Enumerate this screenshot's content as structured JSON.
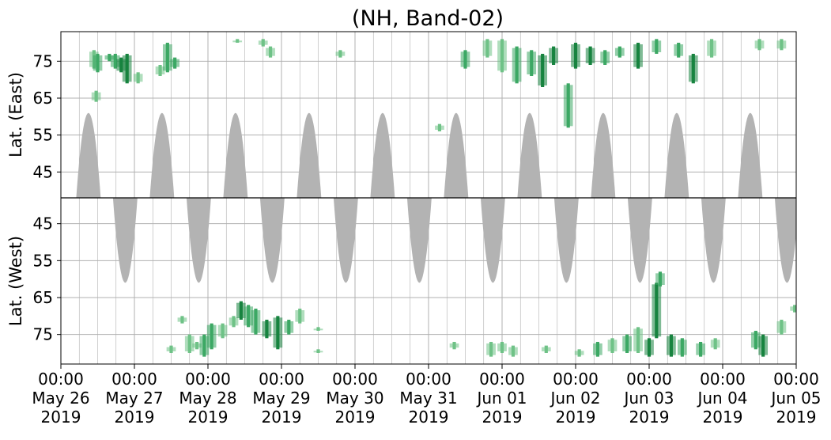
{
  "chart_data": {
    "type": "heatmap",
    "title": "(NH, Band-02)",
    "x_ticks": [
      {
        "time": "00:00",
        "date": "May 26",
        "year": "2019"
      },
      {
        "time": "00:00",
        "date": "May 27",
        "year": "2019"
      },
      {
        "time": "00:00",
        "date": "May 28",
        "year": "2019"
      },
      {
        "time": "00:00",
        "date": "May 29",
        "year": "2019"
      },
      {
        "time": "00:00",
        "date": "May 30",
        "year": "2019"
      },
      {
        "time": "00:00",
        "date": "May 31",
        "year": "2019"
      },
      {
        "time": "00:00",
        "date": "Jun 01",
        "year": "2019"
      },
      {
        "time": "00:00",
        "date": "Jun 02",
        "year": "2019"
      },
      {
        "time": "00:00",
        "date": "Jun 03",
        "year": "2019"
      },
      {
        "time": "00:00",
        "date": "Jun 04",
        "year": "2019"
      },
      {
        "time": "00:00",
        "date": "Jun 05",
        "year": "2019"
      }
    ],
    "x_range": [
      "2019-05-26 00:00",
      "2019-06-05 00:00"
    ],
    "grid": true,
    "panels": [
      {
        "ylabel": "Lat. (East)",
        "yticks": [
          "45",
          "55",
          "65",
          "75"
        ],
        "y_range": [
          38,
          83
        ],
        "y_inverted": false,
        "night_shading_color": "#b3b3b3",
        "night_lobes": [
          {
            "center": "2019-05-26 09:00",
            "half_width_days": 0.17,
            "min_lat": 61
          },
          {
            "center": "2019-05-27 09:00",
            "half_width_days": 0.17,
            "min_lat": 61
          },
          {
            "center": "2019-05-28 09:00",
            "half_width_days": 0.17,
            "min_lat": 61
          },
          {
            "center": "2019-05-29 09:00",
            "half_width_days": 0.17,
            "min_lat": 61
          },
          {
            "center": "2019-05-30 09:00",
            "half_width_days": 0.17,
            "min_lat": 61
          },
          {
            "center": "2019-05-31 09:00",
            "half_width_days": 0.17,
            "min_lat": 61
          },
          {
            "center": "2019-06-01 09:00",
            "half_width_days": 0.17,
            "min_lat": 61
          },
          {
            "center": "2019-06-02 09:00",
            "half_width_days": 0.17,
            "min_lat": 61
          },
          {
            "center": "2019-06-03 09:00",
            "half_width_days": 0.17,
            "min_lat": 61
          },
          {
            "center": "2019-06-04 09:00",
            "half_width_days": 0.17,
            "min_lat": 61
          }
        ],
        "observations": [
          {
            "day": 0.45,
            "lat_from": 73,
            "lat_to": 78,
            "intensity": "low"
          },
          {
            "day": 0.48,
            "lat_from": 64,
            "lat_to": 67,
            "intensity": "low"
          },
          {
            "day": 0.5,
            "lat_from": 72,
            "lat_to": 77,
            "intensity": "mid"
          },
          {
            "day": 0.66,
            "lat_from": 75,
            "lat_to": 77,
            "intensity": "mid"
          },
          {
            "day": 0.74,
            "lat_from": 73,
            "lat_to": 77,
            "intensity": "mid"
          },
          {
            "day": 0.82,
            "lat_from": 72,
            "lat_to": 76,
            "intensity": "high"
          },
          {
            "day": 0.9,
            "lat_from": 69,
            "lat_to": 77,
            "intensity": "high"
          },
          {
            "day": 1.05,
            "lat_from": 69,
            "lat_to": 72,
            "intensity": "low"
          },
          {
            "day": 1.35,
            "lat_from": 71,
            "lat_to": 74,
            "intensity": "low"
          },
          {
            "day": 1.45,
            "lat_from": 72,
            "lat_to": 80,
            "intensity": "mid"
          },
          {
            "day": 1.55,
            "lat_from": 73,
            "lat_to": 76,
            "intensity": "mid"
          },
          {
            "day": 2.4,
            "lat_from": 80,
            "lat_to": 81,
            "intensity": "low"
          },
          {
            "day": 2.75,
            "lat_from": 79,
            "lat_to": 81,
            "intensity": "low"
          },
          {
            "day": 2.85,
            "lat_from": 76,
            "lat_to": 79,
            "intensity": "low"
          },
          {
            "day": 3.8,
            "lat_from": 76,
            "lat_to": 78,
            "intensity": "low"
          },
          {
            "day": 5.15,
            "lat_from": 56,
            "lat_to": 58,
            "intensity": "low"
          },
          {
            "day": 5.5,
            "lat_from": 73,
            "lat_to": 78,
            "intensity": "mid"
          },
          {
            "day": 5.8,
            "lat_from": 76,
            "lat_to": 81,
            "intensity": "low"
          },
          {
            "day": 6.0,
            "lat_from": 72,
            "lat_to": 81,
            "intensity": "low"
          },
          {
            "day": 6.2,
            "lat_from": 69,
            "lat_to": 79,
            "intensity": "mid"
          },
          {
            "day": 6.4,
            "lat_from": 71,
            "lat_to": 78,
            "intensity": "mid"
          },
          {
            "day": 6.55,
            "lat_from": 68,
            "lat_to": 77,
            "intensity": "high"
          },
          {
            "day": 6.7,
            "lat_from": 74,
            "lat_to": 79,
            "intensity": "high"
          },
          {
            "day": 6.9,
            "lat_from": 57,
            "lat_to": 69,
            "intensity": "mid"
          },
          {
            "day": 7.0,
            "lat_from": 73,
            "lat_to": 80,
            "intensity": "high"
          },
          {
            "day": 7.2,
            "lat_from": 74,
            "lat_to": 79,
            "intensity": "high"
          },
          {
            "day": 7.4,
            "lat_from": 74,
            "lat_to": 78,
            "intensity": "mid"
          },
          {
            "day": 7.6,
            "lat_from": 76,
            "lat_to": 79,
            "intensity": "mid"
          },
          {
            "day": 7.85,
            "lat_from": 73,
            "lat_to": 80,
            "intensity": "high"
          },
          {
            "day": 8.1,
            "lat_from": 77,
            "lat_to": 81,
            "intensity": "mid"
          },
          {
            "day": 8.4,
            "lat_from": 76,
            "lat_to": 80,
            "intensity": "mid"
          },
          {
            "day": 8.6,
            "lat_from": 69,
            "lat_to": 77,
            "intensity": "high"
          },
          {
            "day": 8.85,
            "lat_from": 76,
            "lat_to": 81,
            "intensity": "low"
          },
          {
            "day": 9.5,
            "lat_from": 78,
            "lat_to": 81,
            "intensity": "low"
          },
          {
            "day": 9.8,
            "lat_from": 78,
            "lat_to": 81,
            "intensity": "low"
          }
        ]
      },
      {
        "ylabel": "Lat. (West)",
        "yticks": [
          "75",
          "65",
          "55",
          "45"
        ],
        "y_range": [
          38,
          83
        ],
        "y_inverted": true,
        "night_shading_color": "#b3b3b3",
        "night_lobes": [
          {
            "center": "2019-05-26 21:00",
            "half_width_days": 0.17,
            "min_lat": 61
          },
          {
            "center": "2019-05-27 21:00",
            "half_width_days": 0.17,
            "min_lat": 61
          },
          {
            "center": "2019-05-28 21:00",
            "half_width_days": 0.17,
            "min_lat": 61
          },
          {
            "center": "2019-05-29 21:00",
            "half_width_days": 0.17,
            "min_lat": 61
          },
          {
            "center": "2019-05-30 21:00",
            "half_width_days": 0.17,
            "min_lat": 61
          },
          {
            "center": "2019-05-31 21:00",
            "half_width_days": 0.17,
            "min_lat": 61
          },
          {
            "center": "2019-06-01 21:00",
            "half_width_days": 0.17,
            "min_lat": 61
          },
          {
            "center": "2019-06-02 21:00",
            "half_width_days": 0.17,
            "min_lat": 61
          },
          {
            "center": "2019-06-03 21:00",
            "half_width_days": 0.17,
            "min_lat": 61
          },
          {
            "center": "2019-06-04 21:00",
            "half_width_days": 0.17,
            "min_lat": 61
          }
        ],
        "observations": [
          {
            "day": 1.5,
            "lat_from": 78,
            "lat_to": 80,
            "intensity": "low"
          },
          {
            "day": 1.65,
            "lat_from": 70,
            "lat_to": 72,
            "intensity": "low"
          },
          {
            "day": 1.75,
            "lat_from": 75,
            "lat_to": 80,
            "intensity": "low"
          },
          {
            "day": 1.85,
            "lat_from": 77,
            "lat_to": 79,
            "intensity": "low"
          },
          {
            "day": 1.95,
            "lat_from": 75,
            "lat_to": 81,
            "intensity": "mid"
          },
          {
            "day": 2.05,
            "lat_from": 72,
            "lat_to": 79,
            "intensity": "mid"
          },
          {
            "day": 2.2,
            "lat_from": 72,
            "lat_to": 76,
            "intensity": "low"
          },
          {
            "day": 2.35,
            "lat_from": 70,
            "lat_to": 73,
            "intensity": "low"
          },
          {
            "day": 2.45,
            "lat_from": 66,
            "lat_to": 71,
            "intensity": "high"
          },
          {
            "day": 2.55,
            "lat_from": 67,
            "lat_to": 73,
            "intensity": "mid"
          },
          {
            "day": 2.65,
            "lat_from": 68,
            "lat_to": 75,
            "intensity": "mid"
          },
          {
            "day": 2.8,
            "lat_from": 71,
            "lat_to": 76,
            "intensity": "high"
          },
          {
            "day": 2.95,
            "lat_from": 70,
            "lat_to": 79,
            "intensity": "high"
          },
          {
            "day": 3.1,
            "lat_from": 71,
            "lat_to": 75,
            "intensity": "mid"
          },
          {
            "day": 3.25,
            "lat_from": 68,
            "lat_to": 72,
            "intensity": "low"
          },
          {
            "day": 3.5,
            "lat_from": 79,
            "lat_to": 80,
            "intensity": "low"
          },
          {
            "day": 3.5,
            "lat_from": 73,
            "lat_to": 74,
            "intensity": "low"
          },
          {
            "day": 5.35,
            "lat_from": 77,
            "lat_to": 79,
            "intensity": "low"
          },
          {
            "day": 5.85,
            "lat_from": 77,
            "lat_to": 81,
            "intensity": "low"
          },
          {
            "day": 6.0,
            "lat_from": 77,
            "lat_to": 80,
            "intensity": "low"
          },
          {
            "day": 6.15,
            "lat_from": 78,
            "lat_to": 81,
            "intensity": "low"
          },
          {
            "day": 6.6,
            "lat_from": 78,
            "lat_to": 80,
            "intensity": "low"
          },
          {
            "day": 7.05,
            "lat_from": 79,
            "lat_to": 81,
            "intensity": "low"
          },
          {
            "day": 7.3,
            "lat_from": 77,
            "lat_to": 81,
            "intensity": "mid"
          },
          {
            "day": 7.5,
            "lat_from": 76,
            "lat_to": 80,
            "intensity": "low"
          },
          {
            "day": 7.7,
            "lat_from": 75,
            "lat_to": 80,
            "intensity": "mid"
          },
          {
            "day": 7.85,
            "lat_from": 73,
            "lat_to": 80,
            "intensity": "low"
          },
          {
            "day": 8.0,
            "lat_from": 76,
            "lat_to": 81,
            "intensity": "high"
          },
          {
            "day": 8.1,
            "lat_from": 61,
            "lat_to": 76,
            "intensity": "high"
          },
          {
            "day": 8.15,
            "lat_from": 58,
            "lat_to": 62,
            "intensity": "mid"
          },
          {
            "day": 8.3,
            "lat_from": 75,
            "lat_to": 81,
            "intensity": "high"
          },
          {
            "day": 8.45,
            "lat_from": 76,
            "lat_to": 81,
            "intensity": "mid"
          },
          {
            "day": 8.7,
            "lat_from": 77,
            "lat_to": 81,
            "intensity": "mid"
          },
          {
            "day": 8.9,
            "lat_from": 76,
            "lat_to": 79,
            "intensity": "low"
          },
          {
            "day": 9.45,
            "lat_from": 74,
            "lat_to": 79,
            "intensity": "mid"
          },
          {
            "day": 9.55,
            "lat_from": 75,
            "lat_to": 81,
            "intensity": "high"
          },
          {
            "day": 9.8,
            "lat_from": 71,
            "lat_to": 75,
            "intensity": "low"
          },
          {
            "day": 9.98,
            "lat_from": 67,
            "lat_to": 69,
            "intensity": "low"
          }
        ]
      }
    ],
    "colors": {
      "low": "#6fc287",
      "mid": "#3da864",
      "high": "#17843f",
      "night": "#b3b3b3",
      "grid": "#b0b0b0"
    }
  }
}
